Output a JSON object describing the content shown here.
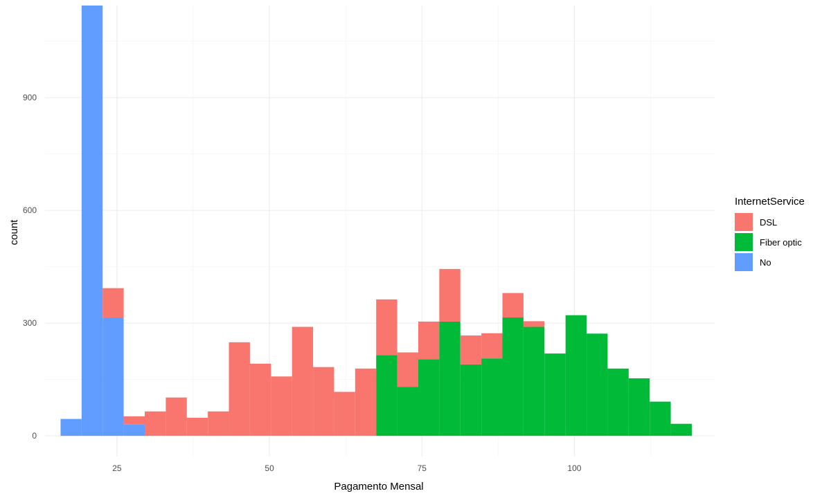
{
  "chart_data": {
    "type": "bar",
    "subtype": "stacked-histogram",
    "xlabel": "Pagamento Mensal",
    "ylabel": "count",
    "xlim": [
      13.2,
      123
    ],
    "ylim": [
      -55,
      1145
    ],
    "x_ticks": [
      25,
      50,
      75,
      100
    ],
    "y_ticks": [
      0,
      300,
      600,
      900
    ],
    "grid": true,
    "legend_position": "right",
    "legend": {
      "title": "InternetService",
      "items": [
        {
          "label": "DSL",
          "color": "#F8766D"
        },
        {
          "label": "Fiber optic",
          "color": "#00BA38"
        },
        {
          "label": "No",
          "color": "#619CFF"
        }
      ]
    },
    "stack_order_bottom_to_top": [
      "No",
      "Fiber optic",
      "DSL"
    ],
    "bins": [
      {
        "x0": 15.75,
        "x1": 19.2,
        "No": 45,
        "Fiber optic": 0,
        "DSL": 0
      },
      {
        "x0": 19.2,
        "x1": 22.65,
        "No": 1145,
        "Fiber optic": 0,
        "DSL": 0
      },
      {
        "x0": 22.65,
        "x1": 26.1,
        "No": 315,
        "Fiber optic": 0,
        "DSL": 78
      },
      {
        "x0": 26.1,
        "x1": 29.55,
        "No": 30,
        "Fiber optic": 0,
        "DSL": 22
      },
      {
        "x0": 29.55,
        "x1": 33.0,
        "No": 0,
        "Fiber optic": 0,
        "DSL": 65
      },
      {
        "x0": 33.0,
        "x1": 36.45,
        "No": 0,
        "Fiber optic": 0,
        "DSL": 102
      },
      {
        "x0": 36.45,
        "x1": 39.9,
        "No": 0,
        "Fiber optic": 0,
        "DSL": 48
      },
      {
        "x0": 39.9,
        "x1": 43.35,
        "No": 0,
        "Fiber optic": 0,
        "DSL": 65
      },
      {
        "x0": 43.35,
        "x1": 46.8,
        "No": 0,
        "Fiber optic": 0,
        "DSL": 249
      },
      {
        "x0": 46.8,
        "x1": 50.25,
        "No": 0,
        "Fiber optic": 0,
        "DSL": 192
      },
      {
        "x0": 50.25,
        "x1": 53.7,
        "No": 0,
        "Fiber optic": 0,
        "DSL": 158
      },
      {
        "x0": 53.7,
        "x1": 57.15,
        "No": 0,
        "Fiber optic": 0,
        "DSL": 290
      },
      {
        "x0": 57.15,
        "x1": 60.6,
        "No": 0,
        "Fiber optic": 0,
        "DSL": 183
      },
      {
        "x0": 60.6,
        "x1": 64.05,
        "No": 0,
        "Fiber optic": 0,
        "DSL": 117
      },
      {
        "x0": 64.05,
        "x1": 67.5,
        "No": 0,
        "Fiber optic": 0,
        "DSL": 179
      },
      {
        "x0": 67.5,
        "x1": 70.95,
        "No": 0,
        "Fiber optic": 215,
        "DSL": 148
      },
      {
        "x0": 70.95,
        "x1": 74.4,
        "No": 0,
        "Fiber optic": 130,
        "DSL": 92
      },
      {
        "x0": 74.4,
        "x1": 77.85,
        "No": 0,
        "Fiber optic": 204,
        "DSL": 100
      },
      {
        "x0": 77.85,
        "x1": 81.3,
        "No": 0,
        "Fiber optic": 304,
        "DSL": 140
      },
      {
        "x0": 81.3,
        "x1": 84.75,
        "No": 0,
        "Fiber optic": 190,
        "DSL": 77
      },
      {
        "x0": 84.75,
        "x1": 88.2,
        "No": 0,
        "Fiber optic": 206,
        "DSL": 67
      },
      {
        "x0": 88.2,
        "x1": 91.65,
        "No": 0,
        "Fiber optic": 315,
        "DSL": 65
      },
      {
        "x0": 91.65,
        "x1": 95.1,
        "No": 0,
        "Fiber optic": 290,
        "DSL": 15
      },
      {
        "x0": 95.1,
        "x1": 98.55,
        "No": 0,
        "Fiber optic": 219,
        "DSL": 0
      },
      {
        "x0": 98.55,
        "x1": 102.0,
        "No": 0,
        "Fiber optic": 321,
        "DSL": 0
      },
      {
        "x0": 102.0,
        "x1": 105.45,
        "No": 0,
        "Fiber optic": 272,
        "DSL": 0
      },
      {
        "x0": 105.45,
        "x1": 108.9,
        "No": 0,
        "Fiber optic": 179,
        "DSL": 0
      },
      {
        "x0": 108.9,
        "x1": 112.35,
        "No": 0,
        "Fiber optic": 153,
        "DSL": 0
      },
      {
        "x0": 112.35,
        "x1": 115.8,
        "No": 0,
        "Fiber optic": 91,
        "DSL": 0
      },
      {
        "x0": 115.8,
        "x1": 119.25,
        "No": 0,
        "Fiber optic": 32,
        "DSL": 0
      }
    ]
  }
}
